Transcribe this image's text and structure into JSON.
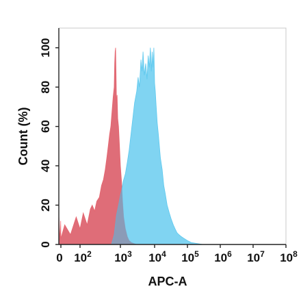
{
  "chart_data": {
    "type": "area",
    "title": "",
    "xlabel": "APC-A",
    "ylabel": "Count  (%)",
    "xscale": "biexponential-log",
    "xlim": [
      -100,
      100000000
    ],
    "ylim": [
      0,
      110
    ],
    "x_ticks": [
      {
        "value": 0,
        "label": "0"
      },
      {
        "value": 100,
        "label": "10",
        "sup": "2"
      },
      {
        "value": 1000,
        "label": "10",
        "sup": "3"
      },
      {
        "value": 10000,
        "label": "10",
        "sup": "4"
      },
      {
        "value": 100000,
        "label": "10",
        "sup": "5"
      },
      {
        "value": 1000000,
        "label": "10",
        "sup": "6"
      },
      {
        "value": 10000000,
        "label": "10",
        "sup": "7"
      },
      {
        "value": 100000000,
        "label": "10",
        "sup": "8"
      }
    ],
    "y_ticks": [
      0,
      20,
      40,
      60,
      80,
      100
    ],
    "grid": false,
    "series": [
      {
        "color": "#f06a72",
        "x": [
          -100,
          -70,
          -40,
          -10,
          0,
          20,
          50,
          80,
          100,
          120,
          150,
          180,
          200,
          230,
          260,
          300,
          340,
          380,
          420,
          460,
          500,
          540,
          580,
          620,
          660,
          700,
          720,
          740,
          760,
          780,
          800,
          830,
          860,
          900,
          950,
          1000,
          1080,
          1160,
          1250,
          1400,
          1600,
          1800,
          2100,
          2500,
          3000
        ],
        "values": [
          15,
          8,
          2,
          12,
          3,
          10,
          5,
          14,
          8,
          16,
          10,
          18,
          20,
          17,
          22,
          24,
          30,
          33,
          38,
          44,
          50,
          56,
          60,
          68,
          75,
          80,
          92,
          98,
          100,
          88,
          72,
          76,
          64,
          60,
          50,
          40,
          32,
          22,
          14,
          8,
          4,
          2,
          1,
          0.5,
          0
        ]
      },
      {
        "color": "#5cc8ee",
        "x": [
          600,
          700,
          800,
          900,
          1000,
          1100,
          1200,
          1400,
          1600,
          1800,
          2000,
          2300,
          2600,
          3000,
          3300,
          3600,
          4000,
          4300,
          4600,
          5000,
          5500,
          6000,
          6500,
          7000,
          7500,
          8000,
          8500,
          9000,
          9500,
          10000,
          10500,
          11000,
          12000,
          13000,
          14000,
          15000,
          17000,
          19000,
          21000,
          24000,
          28000,
          32000,
          37000,
          42000,
          48000,
          55000,
          65000,
          80000,
          100000,
          130000,
          200000,
          300000
        ],
        "values": [
          0,
          5,
          15,
          20,
          25,
          28,
          32,
          36,
          42,
          48,
          55,
          64,
          72,
          78,
          85,
          80,
          94,
          88,
          98,
          86,
          92,
          84,
          96,
          90,
          100,
          88,
          98,
          90,
          100,
          82,
          78,
          72,
          62,
          56,
          50,
          44,
          38,
          30,
          26,
          20,
          16,
          13,
          10,
          8,
          6,
          5,
          4,
          3,
          2,
          1,
          0.5,
          0
        ]
      }
    ]
  }
}
